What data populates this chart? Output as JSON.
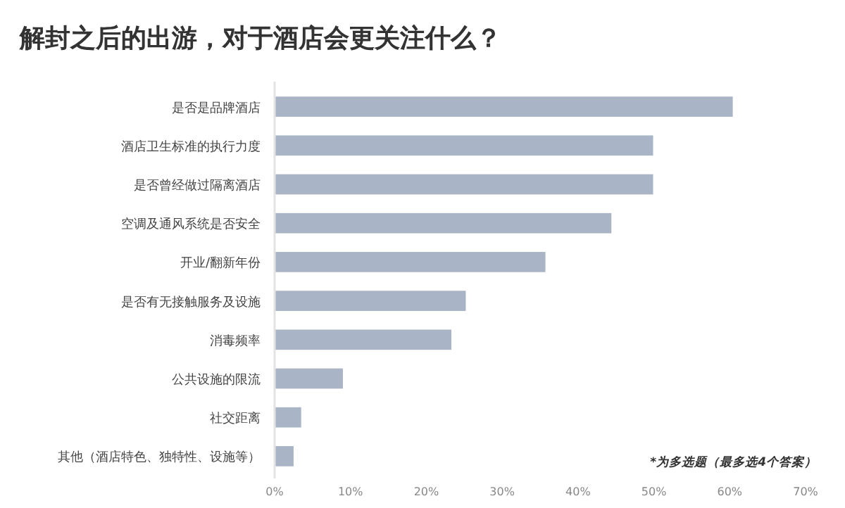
{
  "chart_data": {
    "type": "bar",
    "orientation": "horizontal",
    "title": "解封之后的出游，对于酒店会更关注什么？",
    "categories": [
      "是否是品牌酒店",
      "酒店卫生标准的执行力度",
      "是否曾经做过隔离酒店",
      "空调及通风系统是否安全",
      "开业/翻新年份",
      "是否有无接触服务及设施",
      "消毒频率",
      "公共设施的限流",
      "社交距离",
      "其他（酒店特色、独特性、设施等）"
    ],
    "values": [
      60.4,
      49.9,
      49.9,
      44.4,
      35.7,
      25.2,
      23.3,
      9.0,
      3.5,
      2.5
    ],
    "color": "#a9b4c6",
    "xlim": [
      0,
      70
    ],
    "xticks": [
      {
        "value": 0,
        "label": "0%"
      },
      {
        "value": 10,
        "label": "10%"
      },
      {
        "value": 20,
        "label": "20%"
      },
      {
        "value": 30,
        "label": "30%"
      },
      {
        "value": 40,
        "label": "40%"
      },
      {
        "value": 50,
        "label": "50%"
      },
      {
        "value": 60,
        "label": "60%"
      },
      {
        "value": 70,
        "label": "70%"
      }
    ],
    "annotations": [
      "*为多选题（最多选4个答案）"
    ],
    "grid": false
  }
}
